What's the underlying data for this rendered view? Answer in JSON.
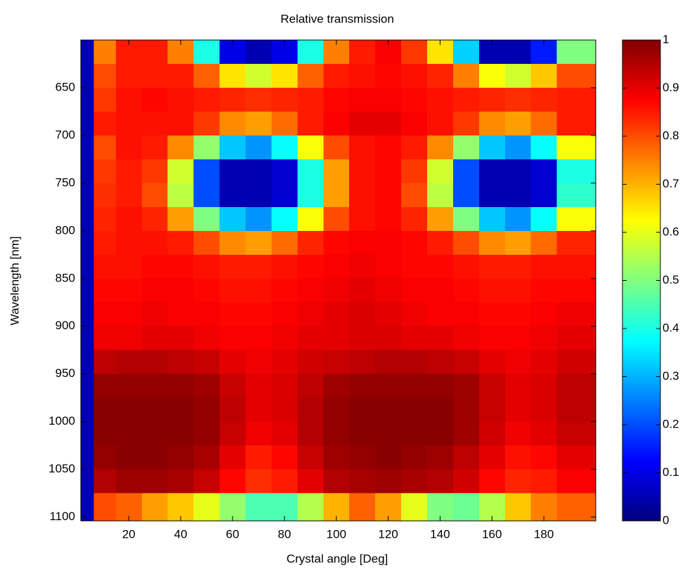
{
  "chart_data": {
    "type": "heatmap",
    "title": "Relative transmission",
    "x_label": "Crystal angle [Deg]",
    "y_label": "Wavelength [nm]",
    "colormap": "jet",
    "zlim": [
      0,
      1
    ],
    "xlim": [
      1.5,
      200
    ],
    "xticks": [
      20,
      40,
      60,
      80,
      100,
      120,
      140,
      160,
      180
    ],
    "ylim": [
      600,
      1104
    ],
    "yreverse": true,
    "yticks": [
      650,
      700,
      750,
      800,
      850,
      900,
      950,
      1000,
      1050,
      1100
    ],
    "colorbar_ticks": [
      0,
      0.1,
      0.2,
      0.3,
      0.4,
      0.5,
      0.6,
      0.7,
      0.8,
      0.9,
      1
    ],
    "x": [
      3,
      10,
      20,
      30,
      40,
      50,
      60,
      70,
      80,
      90,
      100,
      110,
      120,
      130,
      140,
      150,
      160,
      170,
      180,
      190
    ],
    "y": [
      612.5,
      637.5,
      662.5,
      687.5,
      712.5,
      737.5,
      762.5,
      787.5,
      812.5,
      837.5,
      862.5,
      887.5,
      912.5,
      937.5,
      962.5,
      987.5,
      1012.5,
      1037.5,
      1062.5,
      1087.5
    ],
    "z": [
      [
        0.05,
        0.75,
        0.85,
        0.85,
        0.75,
        0.4,
        0.1,
        0.05,
        0.1,
        0.4,
        0.75,
        0.85,
        0.88,
        0.82,
        0.65,
        0.33,
        0.05,
        0.05,
        0.15,
        0.5
      ],
      [
        0.05,
        0.8,
        0.85,
        0.85,
        0.85,
        0.78,
        0.65,
        0.58,
        0.65,
        0.78,
        0.85,
        0.86,
        0.87,
        0.86,
        0.84,
        0.75,
        0.62,
        0.58,
        0.68,
        0.8
      ],
      [
        0.05,
        0.82,
        0.86,
        0.87,
        0.86,
        0.85,
        0.84,
        0.83,
        0.84,
        0.85,
        0.87,
        0.88,
        0.88,
        0.87,
        0.86,
        0.85,
        0.84,
        0.83,
        0.84,
        0.85
      ],
      [
        0.05,
        0.85,
        0.86,
        0.86,
        0.86,
        0.82,
        0.74,
        0.72,
        0.77,
        0.85,
        0.88,
        0.9,
        0.9,
        0.88,
        0.86,
        0.82,
        0.74,
        0.72,
        0.77,
        0.85
      ],
      [
        0.05,
        0.8,
        0.86,
        0.85,
        0.74,
        0.52,
        0.32,
        0.27,
        0.38,
        0.62,
        0.8,
        0.86,
        0.87,
        0.85,
        0.74,
        0.52,
        0.32,
        0.27,
        0.38,
        0.62
      ],
      [
        0.05,
        0.82,
        0.85,
        0.82,
        0.58,
        0.2,
        0.05,
        0.05,
        0.08,
        0.4,
        0.72,
        0.86,
        0.87,
        0.82,
        0.58,
        0.2,
        0.05,
        0.05,
        0.08,
        0.4
      ],
      [
        0.05,
        0.83,
        0.85,
        0.8,
        0.56,
        0.2,
        0.05,
        0.05,
        0.08,
        0.4,
        0.72,
        0.86,
        0.87,
        0.8,
        0.56,
        0.2,
        0.05,
        0.05,
        0.08,
        0.42
      ],
      [
        0.05,
        0.84,
        0.86,
        0.84,
        0.72,
        0.5,
        0.32,
        0.27,
        0.38,
        0.62,
        0.8,
        0.86,
        0.87,
        0.84,
        0.72,
        0.5,
        0.32,
        0.27,
        0.38,
        0.62
      ],
      [
        0.05,
        0.85,
        0.86,
        0.86,
        0.85,
        0.8,
        0.74,
        0.72,
        0.77,
        0.84,
        0.87,
        0.88,
        0.88,
        0.87,
        0.85,
        0.8,
        0.74,
        0.72,
        0.77,
        0.84
      ],
      [
        0.05,
        0.86,
        0.86,
        0.87,
        0.87,
        0.86,
        0.85,
        0.85,
        0.86,
        0.87,
        0.88,
        0.89,
        0.88,
        0.87,
        0.87,
        0.86,
        0.85,
        0.85,
        0.86,
        0.86
      ],
      [
        0.05,
        0.87,
        0.87,
        0.88,
        0.88,
        0.87,
        0.86,
        0.86,
        0.87,
        0.88,
        0.89,
        0.9,
        0.89,
        0.88,
        0.88,
        0.87,
        0.86,
        0.86,
        0.87,
        0.87
      ],
      [
        0.05,
        0.88,
        0.88,
        0.89,
        0.88,
        0.88,
        0.87,
        0.87,
        0.88,
        0.89,
        0.9,
        0.91,
        0.9,
        0.89,
        0.88,
        0.88,
        0.87,
        0.87,
        0.88,
        0.89
      ],
      [
        0.05,
        0.89,
        0.89,
        0.9,
        0.9,
        0.89,
        0.88,
        0.88,
        0.89,
        0.9,
        0.9,
        0.91,
        0.91,
        0.9,
        0.9,
        0.89,
        0.88,
        0.88,
        0.89,
        0.9
      ],
      [
        0.05,
        0.94,
        0.95,
        0.95,
        0.94,
        0.93,
        0.9,
        0.89,
        0.9,
        0.92,
        0.93,
        0.94,
        0.95,
        0.95,
        0.94,
        0.93,
        0.9,
        0.89,
        0.9,
        0.92
      ],
      [
        0.05,
        0.98,
        0.98,
        0.98,
        0.98,
        0.97,
        0.93,
        0.9,
        0.91,
        0.94,
        0.97,
        0.98,
        0.98,
        0.98,
        0.98,
        0.97,
        0.93,
        0.9,
        0.91,
        0.94
      ],
      [
        0.05,
        0.99,
        0.99,
        0.99,
        0.99,
        0.98,
        0.94,
        0.9,
        0.91,
        0.95,
        0.98,
        0.99,
        0.99,
        0.99,
        0.99,
        0.97,
        0.93,
        0.9,
        0.91,
        0.94
      ],
      [
        0.05,
        0.99,
        0.99,
        0.99,
        0.99,
        0.98,
        0.93,
        0.89,
        0.9,
        0.95,
        0.98,
        0.99,
        0.99,
        0.99,
        0.99,
        0.97,
        0.92,
        0.89,
        0.9,
        0.93
      ],
      [
        0.05,
        0.98,
        0.99,
        0.99,
        0.98,
        0.96,
        0.9,
        0.85,
        0.87,
        0.93,
        0.97,
        0.98,
        0.99,
        0.98,
        0.97,
        0.94,
        0.9,
        0.86,
        0.87,
        0.9
      ],
      [
        0.05,
        0.95,
        0.97,
        0.97,
        0.96,
        0.93,
        0.87,
        0.83,
        0.85,
        0.9,
        0.95,
        0.96,
        0.97,
        0.96,
        0.95,
        0.92,
        0.87,
        0.84,
        0.85,
        0.88
      ],
      [
        0.05,
        0.8,
        0.78,
        0.72,
        0.68,
        0.6,
        0.52,
        0.45,
        0.45,
        0.55,
        0.7,
        0.78,
        0.72,
        0.6,
        0.5,
        0.48,
        0.55,
        0.68,
        0.75,
        0.78
      ]
    ]
  }
}
